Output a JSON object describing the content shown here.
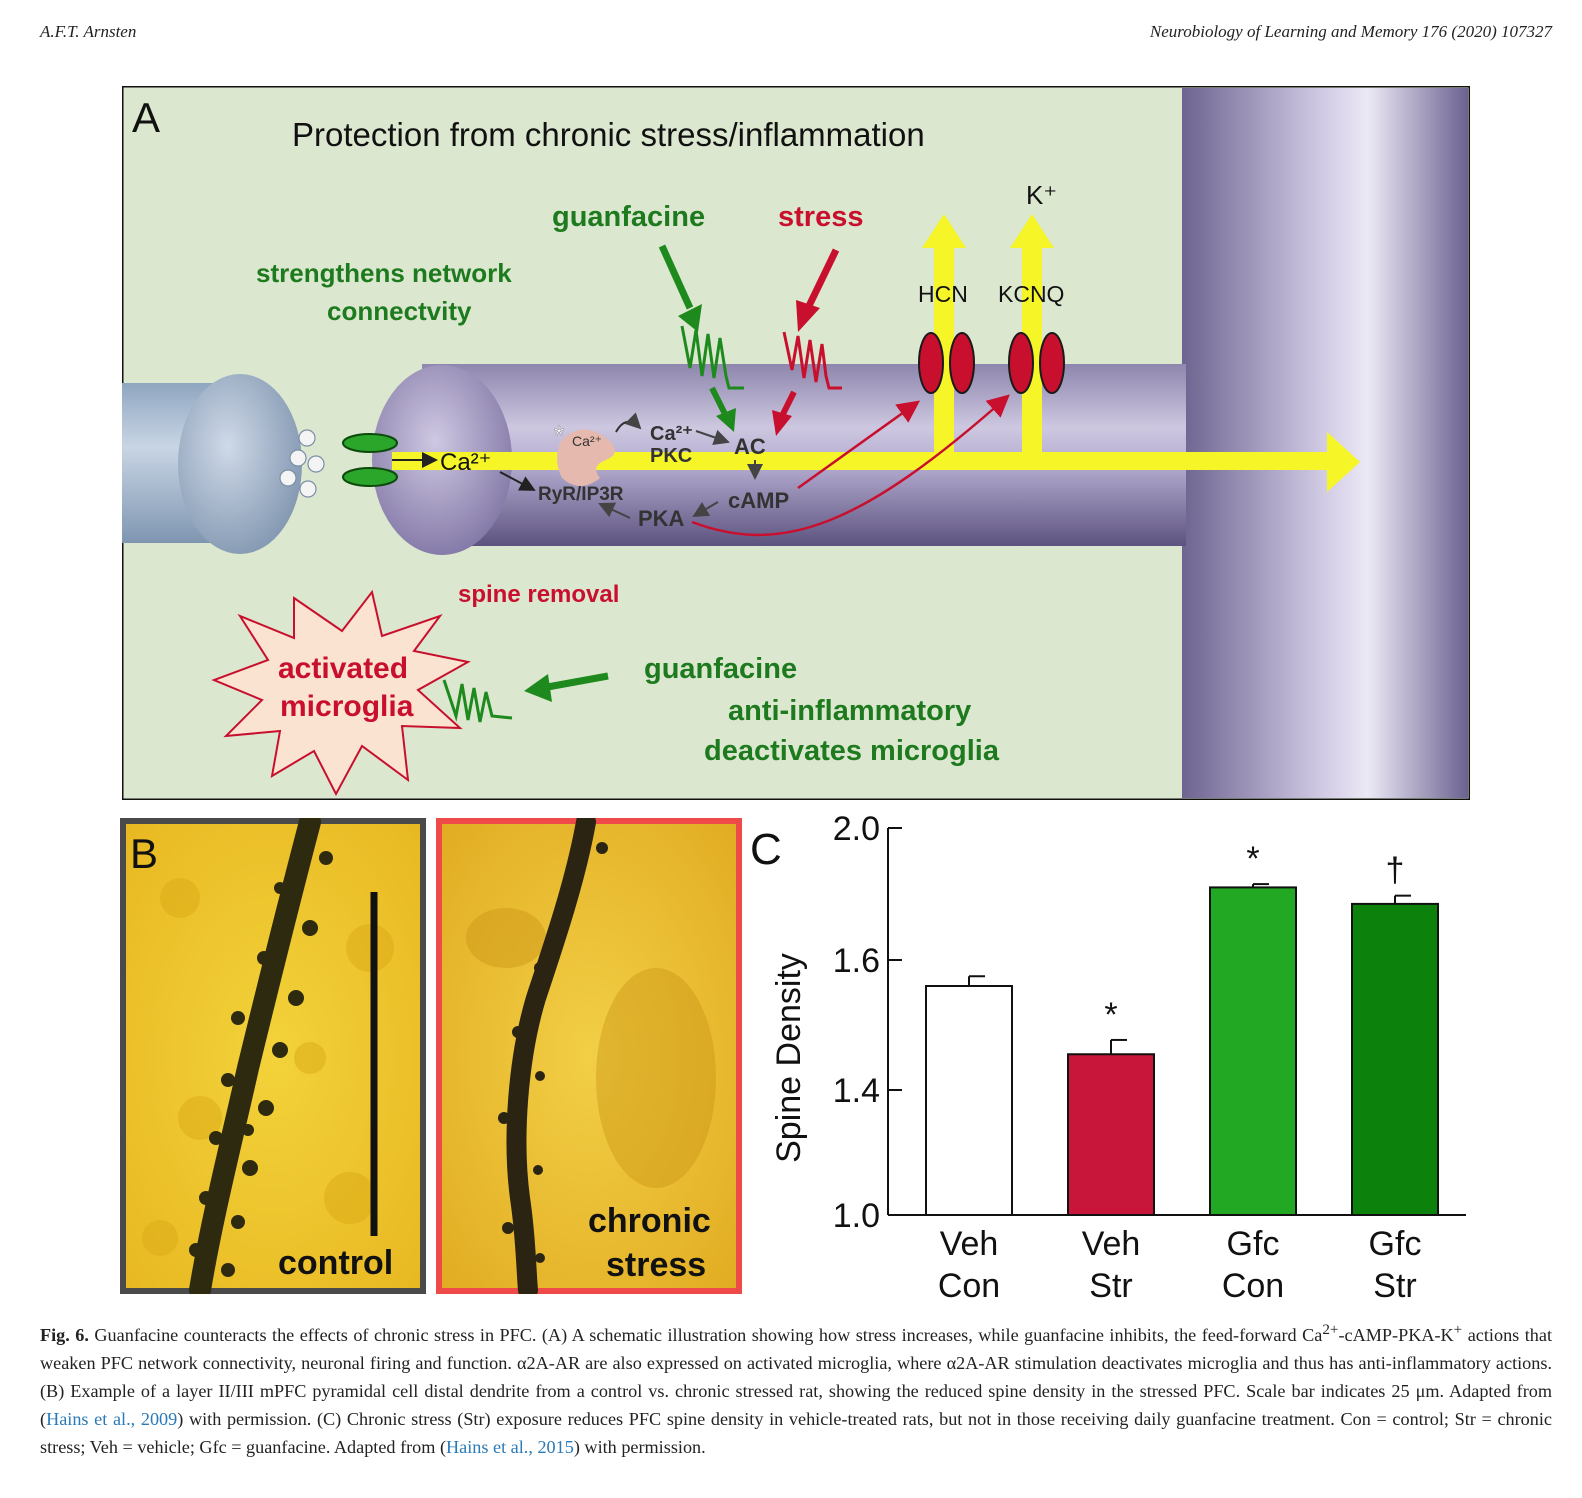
{
  "header": {
    "author": "A.F.T. Arnsten",
    "journal": "Neurobiology of Learning and Memory 176 (2020) 107327"
  },
  "panelA": {
    "label": "A",
    "title": "Protection from chronic stress/inflammation",
    "guanfacine_top": "guanfacine",
    "stress": "stress",
    "k_ion": "K⁺",
    "hcn": "HCN",
    "kcnq": "KCNQ",
    "strengthens_line1": "strengthens network",
    "strengthens_line2": "connectvity",
    "ca_main": "Ca²⁺",
    "ryr": "RyR/IP3R",
    "ca_small": "Ca²⁺",
    "ca_pkc": "Ca²⁺",
    "pkc": "PKC",
    "ac": "AC",
    "camp": "cAMP",
    "pka": "PKA",
    "spine_removal": "spine removal",
    "microglia_line1": "activated",
    "microglia_line2": "microglia",
    "guanfacine_bottom": "guanfacine",
    "anti_inflammatory": "anti-inflammatory",
    "deactivates": "deactivates microglia",
    "colors": {
      "green": "#1e7a1e",
      "red": "#c8102e",
      "background": "#dce7cf",
      "yellow": "#f5f528"
    }
  },
  "panelB": {
    "label": "B",
    "control_label": "control",
    "stress_line1": "chronic",
    "stress_line2": "stress",
    "colors": {
      "control_border": "#4a4a4a",
      "stress_border": "#ee4a4a"
    }
  },
  "panelC": {
    "label": "C",
    "chart_data": {
      "type": "bar",
      "ylabel": "Spine Density",
      "ylim": [
        1.0,
        2.0
      ],
      "yticks": [
        "1.0",
        "1.4",
        "1.6",
        "2.0"
      ],
      "categories": [
        {
          "line1": "Veh",
          "line2": "Con"
        },
        {
          "line1": "Veh",
          "line2": "Str"
        },
        {
          "line1": "Gfc",
          "line2": "Con"
        },
        {
          "line1": "Gfc",
          "line2": "Str"
        }
      ],
      "values": [
        1.56,
        1.455,
        1.82,
        1.77
      ],
      "errors": [
        0.015,
        0.022,
        0.01,
        0.025
      ],
      "markers": [
        "",
        "*",
        "*",
        "†"
      ],
      "colors": [
        "#ffffff",
        "#c8163a",
        "#22a822",
        "#0c820c"
      ]
    }
  },
  "caption": {
    "fig_label": "Fig. 6.",
    "part1": " Guanfacine counteracts the effects of chronic stress in PFC. (A) A schematic illustration showing how stress increases, while guanfacine inhibits, the feed-forward Ca",
    "sup1": "2+",
    "part2": "-cAMP-PKA-K",
    "sup2": "+",
    "part3": " actions that weaken PFC network connectivity, neuronal firing and function. α2A-AR are also expressed on activated microglia, where α2A-AR stimulation deactivates microglia and thus has anti-inflammatory actions. (B) Example of a layer II/III mPFC pyramidal cell distal dendrite from a control vs. chronic stressed rat, showing the reduced spine density in the stressed PFC. Scale bar indicates 25 μm. Adapted from (",
    "ref1": "Hains et al., 2009",
    "part4": ") with permission. (C) Chronic stress (Str) exposure reduces PFC spine density in vehicle-treated rats, but not in those receiving daily guanfacine treatment. Con = control; Str = chronic stress; Veh = vehicle; Gfc = guanfacine. Adapted from (",
    "ref2": "Hains et al., 2015",
    "part5": ") with permission."
  }
}
